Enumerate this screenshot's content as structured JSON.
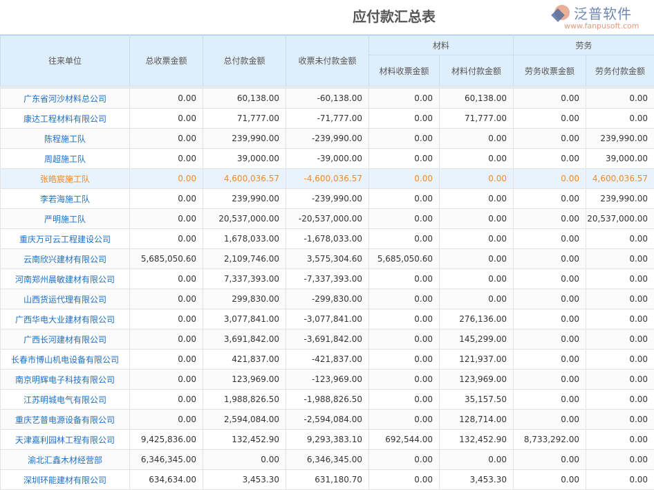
{
  "title": "应付款汇总表",
  "headers": {
    "unit": "往来单位",
    "total_invoice": "总收票金额",
    "total_paid": "总付款金额",
    "unpaid": "收票未付款金额",
    "material": "材料",
    "material_invoice": "材料收票金额",
    "material_paid": "材料付款金额",
    "labor": "劳务",
    "labor_invoice": "劳务收票金额",
    "labor_paid": "劳务付款金额"
  },
  "highlight_row": 4,
  "rows": [
    [
      "广东省河沙材料总公司",
      "0.00",
      "60,138.00",
      "-60,138.00",
      "0.00",
      "60,138.00",
      "0.00",
      "0.00"
    ],
    [
      "康达工程材料有限公司",
      "0.00",
      "71,777.00",
      "-71,777.00",
      "0.00",
      "71,777.00",
      "0.00",
      "0.00"
    ],
    [
      "陈程施工队",
      "0.00",
      "239,990.00",
      "-239,990.00",
      "0.00",
      "0.00",
      "0.00",
      "239,990.00"
    ],
    [
      "周超施工队",
      "0.00",
      "39,000.00",
      "-39,000.00",
      "0.00",
      "0.00",
      "0.00",
      "39,000.00"
    ],
    [
      "张皓宸施工队",
      "0.00",
      "4,600,036.57",
      "-4,600,036.57",
      "0.00",
      "0.00",
      "0.00",
      "4,600,036.57"
    ],
    [
      "李若海施工队",
      "0.00",
      "239,990.00",
      "-239,990.00",
      "0.00",
      "0.00",
      "0.00",
      "239,990.00"
    ],
    [
      "严明施工队",
      "0.00",
      "20,537,000.00",
      "-20,537,000.00",
      "0.00",
      "0.00",
      "0.00",
      "20,537,000.00"
    ],
    [
      "重庆万可云工程建设公司",
      "0.00",
      "1,678,033.00",
      "-1,678,033.00",
      "0.00",
      "0.00",
      "0.00",
      "0.00"
    ],
    [
      "云南欣兴建材有限公司",
      "5,685,050.60",
      "2,109,746.00",
      "3,575,304.60",
      "5,685,050.60",
      "0.00",
      "0.00",
      "0.00"
    ],
    [
      "河南郑州晨敏建材有限公司",
      "0.00",
      "7,337,393.00",
      "-7,337,393.00",
      "0.00",
      "0.00",
      "0.00",
      "0.00"
    ],
    [
      "山西货运代理有限公司",
      "0.00",
      "299,830.00",
      "-299,830.00",
      "0.00",
      "0.00",
      "0.00",
      "0.00"
    ],
    [
      "广西华电大业建材有限公司",
      "0.00",
      "3,077,841.00",
      "-3,077,841.00",
      "0.00",
      "276,136.00",
      "0.00",
      "0.00"
    ],
    [
      "广西长河建材有限公司",
      "0.00",
      "3,691,842.00",
      "-3,691,842.00",
      "0.00",
      "145,299.00",
      "0.00",
      "0.00"
    ],
    [
      "长春市博山机电设备有限公司",
      "0.00",
      "421,837.00",
      "-421,837.00",
      "0.00",
      "121,937.00",
      "0.00",
      "0.00"
    ],
    [
      "南京明辉电子科技有限公司",
      "0.00",
      "123,969.00",
      "-123,969.00",
      "0.00",
      "123,969.00",
      "0.00",
      "0.00"
    ],
    [
      "江苏明城电气有限公司",
      "0.00",
      "1,988,826.50",
      "-1,988,826.50",
      "0.00",
      "35,157.50",
      "0.00",
      "0.00"
    ],
    [
      "重庆艺普电源设备有限公司",
      "0.00",
      "2,594,084.00",
      "-2,594,084.00",
      "0.00",
      "128,714.00",
      "0.00",
      "0.00"
    ],
    [
      "天津嘉利园林工程有限公司",
      "9,425,836.00",
      "132,452.90",
      "9,293,383.10",
      "692,544.00",
      "132,452.90",
      "8,733,292.00",
      "0.00"
    ],
    [
      "渝北汇鑫木材经营部",
      "6,346,345.00",
      "0.00",
      "6,346,345.00",
      "0.00",
      "0.00",
      "0.00",
      "0.00"
    ],
    [
      "深圳环能建材有限公司",
      "634,634.00",
      "3,453.30",
      "631,180.70",
      "0.00",
      "3,453.30",
      "0.00",
      "0.00"
    ]
  ],
  "watermark": {
    "brand": "泛普软件",
    "url": "www.fanpusoft.com"
  }
}
